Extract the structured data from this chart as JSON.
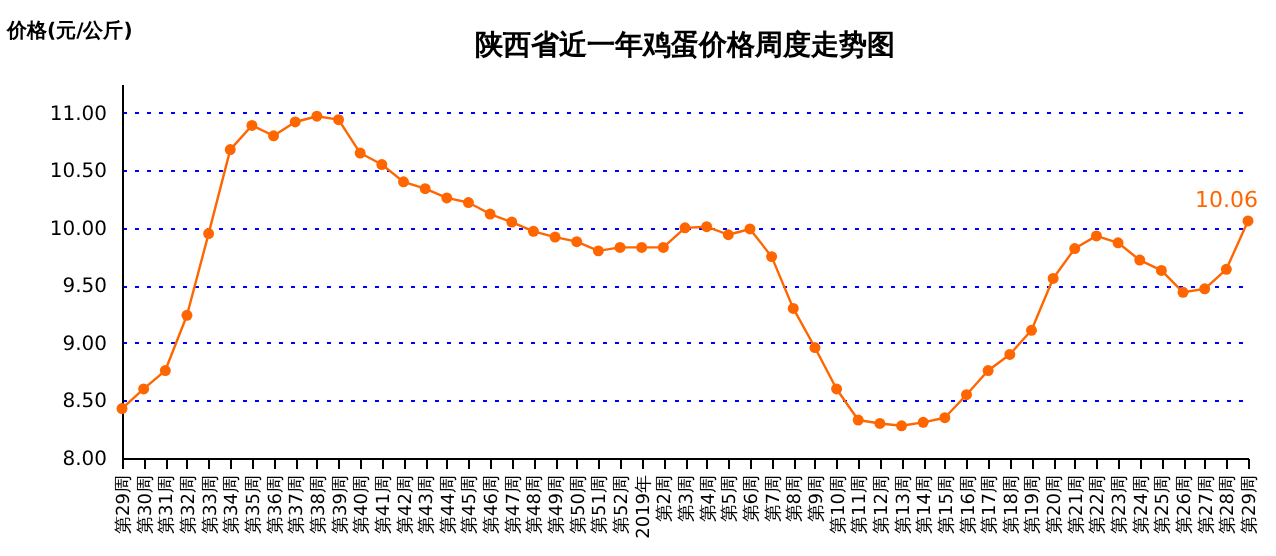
{
  "chart_data": {
    "type": "line",
    "title": "陕西省近一年鸡蛋价格周度走势图",
    "ylabel": "价格(元/公斤)",
    "categories": [
      "第29周",
      "第30周",
      "第31周",
      "第32周",
      "第33周",
      "第34周",
      "第35周",
      "第36周",
      "第37周",
      "第38周",
      "第39周",
      "第40周",
      "第41周",
      "第42周",
      "第43周",
      "第44周",
      "第45周",
      "第46周",
      "第47周",
      "第48周",
      "第49周",
      "第50周",
      "第51周",
      "第52周",
      "2019年",
      "第2周",
      "第3周",
      "第4周",
      "第5周",
      "第6周",
      "第7周",
      "第8周",
      "第9周",
      "第10周",
      "第11周",
      "第12周",
      "第13周",
      "第14周",
      "第15周",
      "第16周",
      "第17周",
      "第18周",
      "第19周",
      "第20周",
      "第21周",
      "第22周",
      "第23周",
      "第24周",
      "第25周",
      "第26周",
      "第27周",
      "第28周",
      "第29周"
    ],
    "series": [
      {
        "color": "#ff6600",
        "values": [
          8.43,
          8.6,
          8.76,
          9.24,
          9.95,
          10.68,
          10.89,
          10.8,
          10.92,
          10.97,
          10.94,
          10.65,
          10.55,
          10.4,
          10.34,
          10.26,
          10.22,
          10.12,
          10.05,
          9.97,
          9.92,
          9.88,
          9.8,
          9.83,
          9.83,
          9.83,
          10.0,
          10.01,
          9.94,
          9.99,
          9.75,
          9.3,
          8.96,
          8.6,
          8.33,
          8.3,
          8.28,
          8.31,
          8.35,
          8.55,
          8.76,
          8.9,
          9.11,
          9.56,
          9.82,
          9.93,
          9.87,
          9.72,
          9.63,
          9.44,
          9.47,
          9.64,
          10.06
        ],
        "value_labels": [
          null,
          null,
          null,
          null,
          null,
          null,
          null,
          null,
          null,
          null,
          null,
          null,
          null,
          null,
          null,
          null,
          null,
          null,
          null,
          null,
          null,
          null,
          null,
          null,
          null,
          null,
          null,
          null,
          null,
          null,
          null,
          null,
          null,
          null,
          null,
          null,
          null,
          null,
          null,
          null,
          null,
          null,
          null,
          null,
          null,
          null,
          null,
          null,
          null,
          null,
          null,
          null,
          "10.06"
        ]
      }
    ],
    "ylim": [
      8,
      11.25
    ],
    "yticks": [
      {
        "value": 8,
        "label": "8.00"
      },
      {
        "value": 8.5,
        "label": "8.50"
      },
      {
        "value": 9,
        "label": "9.00"
      },
      {
        "value": 9.5,
        "label": "9.50"
      },
      {
        "value": 10,
        "label": "10.00"
      },
      {
        "value": 10.5,
        "label": "10.50"
      },
      {
        "value": 11,
        "label": "11.00"
      }
    ],
    "grid": "y",
    "marker": "circle",
    "line_style": "solid"
  }
}
